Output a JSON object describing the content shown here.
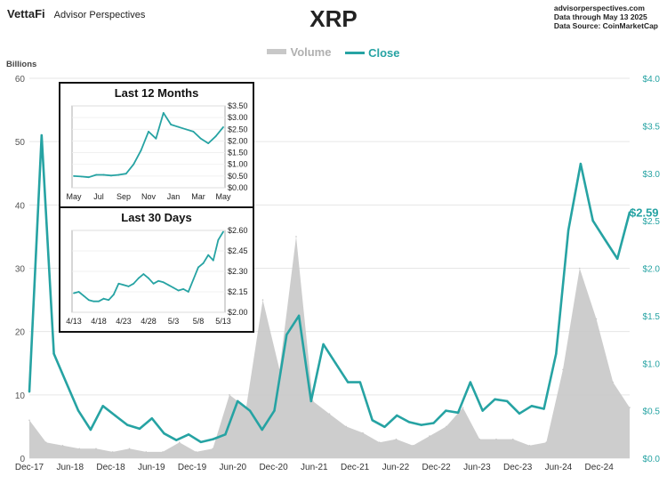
{
  "header": {
    "brand": "VettaFi",
    "brand_sub": "Advisor Perspectives",
    "title": "XRP",
    "source_lines": [
      "advisorperspectives.com",
      "Data through  May 13 2025",
      "Data Source: CoinMarketCap"
    ]
  },
  "colors": {
    "close": "#26a3a3",
    "volume": "#c8c8c8",
    "axis_text": "#555555",
    "grid": "#e6e6e6"
  },
  "chart_data": [
    {
      "type": "line",
      "title": "XRP",
      "ylabel": "Billions",
      "series": [
        {
          "name": "Volume",
          "axis": "left",
          "type": "area",
          "x": [
            "Dec-17",
            "Mar-18",
            "Jun-18",
            "Sep-18",
            "Dec-18",
            "Mar-19",
            "Jun-19",
            "Sep-19",
            "Dec-19",
            "Mar-20",
            "Jun-20",
            "Sep-20",
            "Nov-20",
            "Dec-20",
            "Jan-21",
            "Apr-21",
            "May-21",
            "Jun-21",
            "Sep-21",
            "Dec-21",
            "Mar-22",
            "Jun-22",
            "Sep-22",
            "Dec-22",
            "Mar-23",
            "Jun-23",
            "Jul-23",
            "Sep-23",
            "Dec-23",
            "Mar-24",
            "Jun-24",
            "Sep-24",
            "Nov-24",
            "Dec-24",
            "Jan-25",
            "Mar-25",
            "May-25"
          ],
          "values": [
            6,
            2.5,
            2,
            1.5,
            1.5,
            1,
            1.5,
            1,
            1,
            2.5,
            1,
            1.5,
            10,
            8,
            25,
            14,
            35,
            9,
            7,
            5,
            4,
            2.5,
            3,
            2,
            3.5,
            5,
            8,
            3,
            3,
            3,
            2,
            2.5,
            14,
            30,
            22,
            12,
            8
          ]
        },
        {
          "name": "Close",
          "axis": "right",
          "x": [
            "Dec-17",
            "Jan-18",
            "Feb-18",
            "Apr-18",
            "Jun-18",
            "Aug-18",
            "Sep-18",
            "Oct-18",
            "Dec-18",
            "Mar-19",
            "Jun-19",
            "Sep-19",
            "Dec-19",
            "Feb-20",
            "Mar-20",
            "Jun-20",
            "Oct-20",
            "Nov-20",
            "Dec-20",
            "Jan-21",
            "Mar-21",
            "Apr-21",
            "May-21",
            "Jul-21",
            "Aug-21",
            "Sep-21",
            "Dec-21",
            "Feb-22",
            "May-22",
            "Jun-22",
            "Sep-22",
            "Nov-22",
            "Dec-22",
            "Mar-23",
            "Apr-23",
            "Jun-23",
            "Jul-23",
            "Aug-23",
            "Dec-23",
            "Mar-24",
            "Jun-24",
            "Aug-24",
            "Oct-24",
            "Nov-24",
            "Dec-24",
            "Jan-25",
            "Feb-25",
            "Mar-25",
            "Apr-25",
            "May-25"
          ],
          "values": [
            0.7,
            3.4,
            1.1,
            0.8,
            0.5,
            0.3,
            0.55,
            0.45,
            0.35,
            0.31,
            0.42,
            0.26,
            0.19,
            0.25,
            0.17,
            0.2,
            0.25,
            0.6,
            0.5,
            0.3,
            0.5,
            1.3,
            1.5,
            0.6,
            1.2,
            1.0,
            0.8,
            0.8,
            0.4,
            0.33,
            0.45,
            0.38,
            0.35,
            0.37,
            0.5,
            0.48,
            0.8,
            0.5,
            0.62,
            0.6,
            0.47,
            0.55,
            0.52,
            1.1,
            2.4,
            3.1,
            2.5,
            2.3,
            2.1,
            2.59
          ]
        }
      ],
      "left_axis": {
        "label": "Billions",
        "range": [
          0,
          60
        ],
        "ticks": [
          "0",
          "10",
          "20",
          "30",
          "40",
          "50",
          "60"
        ]
      },
      "right_axis": {
        "range": [
          0,
          4.0
        ],
        "ticks": [
          "$0.0",
          "$0.5",
          "$1.0",
          "$1.5",
          "$2.0",
          "$2.5",
          "$3.0",
          "$3.5",
          "$4.0"
        ]
      },
      "x_ticks": [
        "Dec-17",
        "Jun-18",
        "Dec-18",
        "Jun-19",
        "Dec-19",
        "Jun-20",
        "Dec-20",
        "Jun-21",
        "Dec-21",
        "Jun-22",
        "Dec-22",
        "Jun-23",
        "Dec-23",
        "Jun-24",
        "Dec-24"
      ],
      "last_value_label": "$2.59",
      "grid": true,
      "legend": "top-center"
    },
    {
      "type": "line",
      "title": "Last 12 Months",
      "series": [
        {
          "name": "Close",
          "x": [
            "May",
            "Jun",
            "Jul",
            "Aug",
            "Sep",
            "Oct",
            "Nov 1",
            "Nov 10",
            "Nov 20",
            "Dec 1",
            "Dec 10",
            "Jan 1",
            "Jan 15",
            "Feb 1",
            "Feb 15",
            "Mar 1",
            "Mar 15",
            "Apr 1",
            "Apr 10",
            "Apr 25",
            "May 13"
          ],
          "values": [
            0.5,
            0.48,
            0.45,
            0.55,
            0.55,
            0.52,
            0.55,
            0.6,
            1.0,
            1.6,
            2.4,
            2.1,
            3.2,
            2.7,
            2.6,
            2.5,
            2.4,
            2.1,
            1.9,
            2.2,
            2.59
          ]
        }
      ],
      "y_ticks": [
        "$3.50",
        "$3.00",
        "$2.50",
        "$2.00",
        "$1.50",
        "$1.00",
        "$0.50",
        "$0.00"
      ],
      "x_ticks": [
        "May",
        "Jul",
        "Sep",
        "Nov",
        "Jan",
        "Mar",
        "May"
      ],
      "ylim": [
        0,
        3.5
      ]
    },
    {
      "type": "line",
      "title": "Last 30 Days",
      "series": [
        {
          "name": "Close",
          "x": [
            "4/13",
            "4/14",
            "4/15",
            "4/16",
            "4/17",
            "4/18",
            "4/19",
            "4/20",
            "4/21",
            "4/22",
            "4/23",
            "4/24",
            "4/25",
            "4/26",
            "4/27",
            "4/28",
            "4/29",
            "4/30",
            "5/1",
            "5/2",
            "5/3",
            "5/4",
            "5/5",
            "5/6",
            "5/7",
            "5/8",
            "5/9",
            "5/10",
            "5/11",
            "5/12",
            "5/13"
          ],
          "values": [
            2.14,
            2.15,
            2.12,
            2.09,
            2.08,
            2.08,
            2.1,
            2.09,
            2.13,
            2.21,
            2.2,
            2.19,
            2.21,
            2.25,
            2.28,
            2.25,
            2.21,
            2.23,
            2.22,
            2.2,
            2.18,
            2.16,
            2.17,
            2.15,
            2.24,
            2.33,
            2.36,
            2.42,
            2.38,
            2.53,
            2.59
          ]
        }
      ],
      "y_ticks": [
        "$2.60",
        "$2.45",
        "$2.30",
        "$2.15",
        "$2.00"
      ],
      "x_ticks": [
        "4/13",
        "4/18",
        "4/23",
        "4/28",
        "5/3",
        "5/8",
        "5/13"
      ],
      "ylim": [
        2.0,
        2.6
      ]
    }
  ]
}
